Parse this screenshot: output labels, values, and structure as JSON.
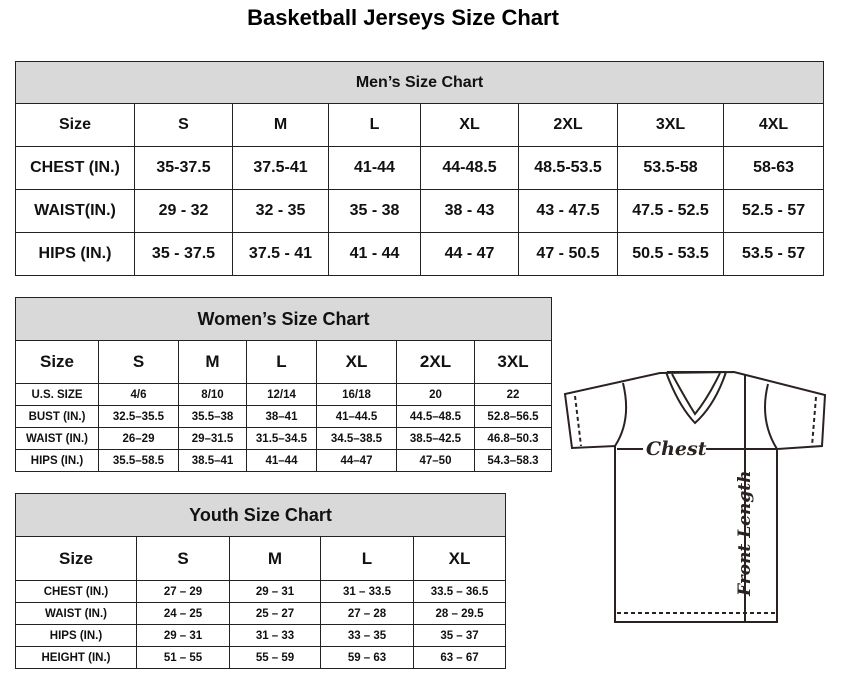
{
  "title": "Basketball Jerseys Size Chart",
  "men": {
    "title": "Men’s Size Chart",
    "headers": [
      "Size",
      "S",
      "M",
      "L",
      "XL",
      "2XL",
      "3XL",
      "4XL"
    ],
    "rows": [
      [
        "CHEST (IN.)",
        "35-37.5",
        "37.5-41",
        "41-44",
        "44-48.5",
        "48.5-53.5",
        "53.5-58",
        "58-63"
      ],
      [
        "WAIST(IN.)",
        "29 - 32",
        "32 - 35",
        "35 - 38",
        "38 - 43",
        "43 - 47.5",
        "47.5 - 52.5",
        "52.5 - 57"
      ],
      [
        "HIPS (IN.)",
        "35 - 37.5",
        "37.5 - 41",
        "41 - 44",
        "44 - 47",
        "47 - 50.5",
        "50.5 - 53.5",
        "53.5 - 57"
      ]
    ]
  },
  "women": {
    "title": "Women’s Size Chart",
    "headers": [
      "Size",
      "S",
      "M",
      "L",
      "XL",
      "2XL",
      "3XL"
    ],
    "rows": [
      [
        "U.S. SIZE",
        "4/6",
        "8/10",
        "12/14",
        "16/18",
        "20",
        "22"
      ],
      [
        "BUST (IN.)",
        "32.5–35.5",
        "35.5–38",
        "38–41",
        "41–44.5",
        "44.5–48.5",
        "52.8–56.5"
      ],
      [
        "WAIST (IN.)",
        "26–29",
        "29–31.5",
        "31.5–34.5",
        "34.5–38.5",
        "38.5–42.5",
        "46.8–50.3"
      ],
      [
        "HIPS (IN.)",
        "35.5–58.5",
        "38.5–41",
        "41–44",
        "44–47",
        "47–50",
        "54.3–58.3"
      ]
    ]
  },
  "youth": {
    "title": "Youth Size Chart",
    "headers": [
      "Size",
      "S",
      "M",
      "L",
      "XL"
    ],
    "rows": [
      [
        "CHEST (IN.)",
        "27 – 29",
        "29 – 31",
        "31 – 33.5",
        "33.5 – 36.5"
      ],
      [
        "WAIST (IN.)",
        "24 – 25",
        "25 – 27",
        "27 – 28",
        "28 – 29.5"
      ],
      [
        "HIPS (IN.)",
        "29 – 31",
        "31 – 33",
        "33 – 35",
        "35 – 37"
      ],
      [
        "HEIGHT (IN.)",
        "51 – 55",
        "55 – 59",
        "59 – 63",
        "63 – 67"
      ]
    ]
  },
  "diagram": {
    "chest_label": "Chest",
    "length_label": "Front Length"
  }
}
